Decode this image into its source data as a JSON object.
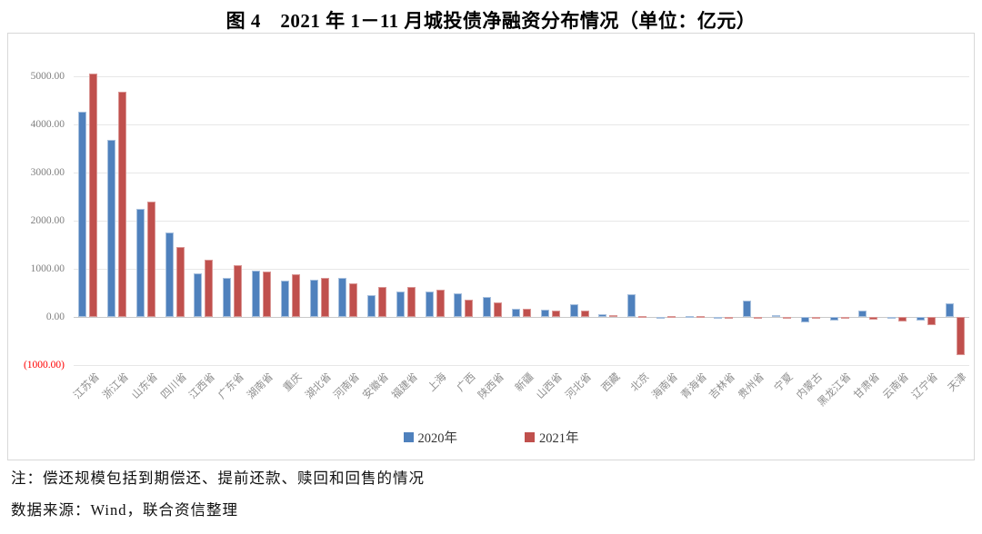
{
  "title": "图 4　2021 年 1－11 月城投债净融资分布情况（单位：亿元）",
  "notes": {
    "note1": "注：偿还规模包括到期偿还、提前还款、赎回和回售的情况",
    "note2": "数据来源：Wind，联合资信整理"
  },
  "colors": {
    "series_2020": "#4F81BD",
    "series_2020_border": "#A7C0DE",
    "series_2021": "#C0504D",
    "series_2021_border": "#DA9694",
    "negative_tick_label": "#FF0000",
    "gridline": "#E7E7E7",
    "axis_text": "#7F7F7F"
  },
  "chart_data": {
    "type": "bar",
    "title": "图 4　2021 年 1－11 月城投债净融资分布情况（单位：亿元）",
    "unit": "亿元",
    "categories": [
      "江苏省",
      "浙江省",
      "山东省",
      "四川省",
      "江西省",
      "广东省",
      "湖南省",
      "重庆",
      "湖北省",
      "河南省",
      "安徽省",
      "福建省",
      "上海",
      "广西",
      "陕西省",
      "新疆",
      "山西省",
      "河北省",
      "西藏",
      "北京",
      "海南省",
      "青海省",
      "吉林省",
      "贵州省",
      "宁夏",
      "内蒙古",
      "黑龙江省",
      "甘肃省",
      "云南省",
      "辽宁省",
      "天津"
    ],
    "series": [
      {
        "name": "2020年",
        "color": "#4F81BD",
        "border": "#A7C0DE",
        "values": [
          4270,
          3670,
          2240,
          1750,
          900,
          820,
          960,
          760,
          780,
          810,
          455,
          535,
          520,
          485,
          420,
          175,
          145,
          270,
          55,
          470,
          5,
          25,
          -30,
          340,
          30,
          -120,
          -80,
          140,
          5,
          -70,
          280
        ]
      },
      {
        "name": "2021年",
        "color": "#C0504D",
        "border": "#DA9694",
        "values": [
          5060,
          4680,
          2390,
          1450,
          1180,
          1080,
          950,
          885,
          820,
          700,
          630,
          615,
          565,
          360,
          310,
          170,
          140,
          130,
          30,
          25,
          25,
          20,
          -5,
          -10,
          -25,
          -15,
          -25,
          -60,
          -85,
          -170,
          -800
        ]
      }
    ],
    "ylim": [
      -1000,
      5000
    ],
    "ytick_interval": 1000,
    "ytick_labels": [
      "5000.00",
      "4000.00",
      "3000.00",
      "2000.00",
      "1000.00",
      "0.00",
      "(1000.00)"
    ],
    "grid": true,
    "legend_position": "bottom"
  }
}
